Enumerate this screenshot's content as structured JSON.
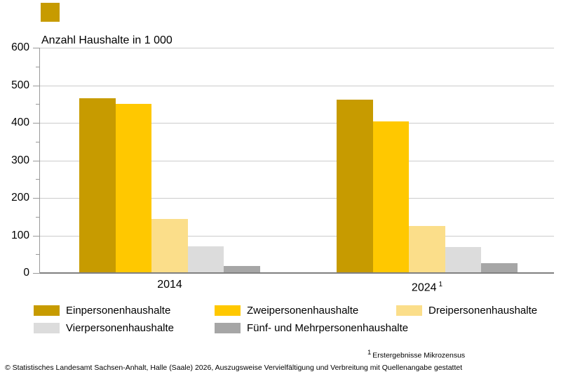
{
  "title": "Anzahl Haushalte in 1 000",
  "brand": {
    "color": "#C79B00"
  },
  "chart_data": {
    "type": "bar",
    "categories": [
      "2014",
      "2024"
    ],
    "series": [
      {
        "name": "Einpersonenhaushalte",
        "color": "#C79B00",
        "values": [
          466,
          462
        ]
      },
      {
        "name": "Zweipersonenhaushalte",
        "color": "#FFC800",
        "values": [
          451,
          404
        ]
      },
      {
        "name": "Dreipersonenhaushalte",
        "color": "#FBDE8A",
        "values": [
          144,
          125
        ]
      },
      {
        "name": "Vierpersonenhaushalte",
        "color": "#DCDCDC",
        "values": [
          71,
          69
        ]
      },
      {
        "name": "Fünf- und Mehrpersonenhaushalte",
        "color": "#A6A6A6",
        "values": [
          18,
          26
        ]
      }
    ],
    "title": "Anzahl Haushalte in 1 000",
    "xlabel": "",
    "ylabel": "",
    "ylim": [
      0,
      600
    ],
    "yticks": [
      0,
      100,
      200,
      300,
      400,
      500,
      600
    ],
    "ytick_step": 100,
    "grid": true,
    "legend_position": "bottom"
  },
  "footnote": {
    "marker": "1",
    "text": "Erstergebnisse Mikrozensus"
  },
  "copyright": "© Statistisches Landesamt Sachsen-Anhalt, Halle (Saale) 2026, Auszugsweise Vervielfältigung und Verbreitung mit Quellenangabe gestattet"
}
